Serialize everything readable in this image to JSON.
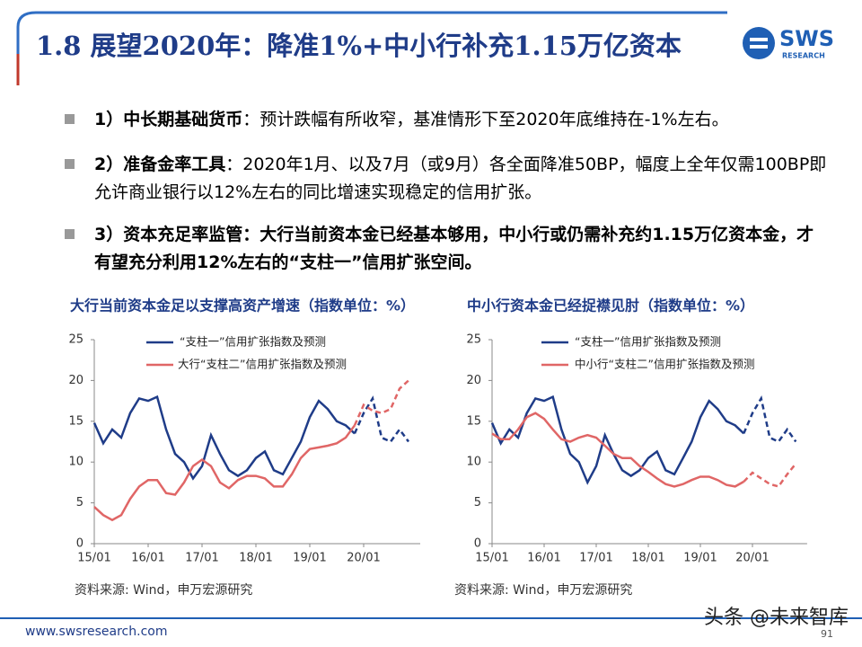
{
  "header": {
    "title": "1.8 展望2020年：降准1%+中小行补充1.15万亿资本",
    "logo": "SWS",
    "logo_sub": "RESEARCH"
  },
  "bullets": [
    {
      "lead": "1）中长期基础货币",
      "text": "：预计跌幅有所收窄，基准情形下至2020年底维持在-1%左右。",
      "bold": false
    },
    {
      "lead": "2）准备金率工具",
      "text": "：2020年1月、以及7月（或9月）各全面降准50BP，幅度上全年仅需100BP即允许商业银行以12%左右的同比增速实现稳定的信用扩张。",
      "bold": false
    },
    {
      "lead": "3）资本充足率监管",
      "text": "：大行当前资本金已经基本够用，中小行或仍需补充约1.15万亿资本金，才有望充分利用12%左右的“支柱一”信用扩张空间。",
      "bold": true
    }
  ],
  "chart_data": [
    {
      "type": "line",
      "title": "大行当前资本金足以支撑高资产增速（指数单位：%）",
      "categories": [
        "15/01",
        null,
        null,
        null,
        null,
        null,
        "16/01",
        null,
        null,
        null,
        null,
        null,
        "17/01",
        null,
        null,
        null,
        null,
        null,
        "18/01",
        null,
        null,
        null,
        null,
        null,
        "19/01",
        null,
        null,
        null,
        null,
        null,
        "20/01",
        null,
        null,
        null,
        null,
        null
      ],
      "ylim": [
        0,
        25
      ],
      "yticks": [
        0,
        5,
        10,
        15,
        20,
        25
      ],
      "series": [
        {
          "name": "“支柱一”信用扩张指数及预测",
          "color": "#1f3c88",
          "values": [
            14.8,
            12.3,
            14.0,
            13.0,
            16.0,
            17.8,
            17.5,
            18.0,
            14.0,
            11.0,
            10.0,
            8.0,
            9.5,
            13.3,
            11.0,
            9.0,
            8.3,
            9.0,
            10.5,
            11.3,
            9.0,
            8.5,
            10.5,
            12.5,
            15.5,
            17.5,
            16.5,
            15.0,
            14.5,
            13.5,
            null,
            null,
            null,
            null,
            null,
            null
          ]
        },
        {
          "color": "#1f3c88",
          "dashed": true,
          "values": [
            null,
            null,
            null,
            null,
            null,
            null,
            null,
            null,
            null,
            null,
            null,
            null,
            null,
            null,
            null,
            null,
            null,
            null,
            null,
            null,
            null,
            null,
            null,
            null,
            null,
            null,
            null,
            null,
            null,
            13.5,
            16.0,
            17.8,
            13.0,
            12.5,
            14.0,
            12.5
          ]
        },
        {
          "name": "大行“支柱二”信用扩张指数及预测",
          "color": "#e06666",
          "values": [
            4.5,
            3.5,
            2.9,
            3.5,
            5.5,
            7.0,
            7.8,
            7.8,
            6.2,
            6.0,
            7.5,
            9.5,
            10.3,
            9.5,
            7.5,
            6.8,
            7.8,
            8.3,
            8.3,
            8.0,
            7.0,
            7.0,
            8.5,
            10.5,
            11.6,
            11.8,
            12.0,
            12.3,
            13.0,
            14.5,
            null,
            null,
            null,
            null,
            null,
            null
          ]
        },
        {
          "color": "#e06666",
          "dashed": true,
          "values": [
            null,
            null,
            null,
            null,
            null,
            null,
            null,
            null,
            null,
            null,
            null,
            null,
            null,
            null,
            null,
            null,
            null,
            null,
            null,
            null,
            null,
            null,
            null,
            null,
            null,
            null,
            null,
            null,
            null,
            14.5,
            17.0,
            16.3,
            16.0,
            16.5,
            19.0,
            20.0
          ]
        }
      ],
      "source": "资料来源: Wind，申万宏源研究"
    },
    {
      "type": "line",
      "title": "中小行资本金已经捉襟见肘（指数单位：%）",
      "categories": [
        "15/01",
        null,
        null,
        null,
        null,
        null,
        "16/01",
        null,
        null,
        null,
        null,
        null,
        "17/01",
        null,
        null,
        null,
        null,
        null,
        "18/01",
        null,
        null,
        null,
        null,
        null,
        "19/01",
        null,
        null,
        null,
        null,
        null,
        "20/01",
        null,
        null,
        null,
        null,
        null
      ],
      "ylim": [
        0,
        25
      ],
      "yticks": [
        0,
        5,
        10,
        15,
        20,
        25
      ],
      "series": [
        {
          "name": "“支柱一”信用扩张指数及预测",
          "color": "#1f3c88",
          "values": [
            14.8,
            12.3,
            14.0,
            13.0,
            16.0,
            17.8,
            17.5,
            18.0,
            14.0,
            11.0,
            10.0,
            7.5,
            9.5,
            13.3,
            11.0,
            9.0,
            8.3,
            9.0,
            10.5,
            11.3,
            9.0,
            8.5,
            10.5,
            12.5,
            15.5,
            17.5,
            16.5,
            15.0,
            14.5,
            13.5,
            null,
            null,
            null,
            null,
            null,
            null
          ]
        },
        {
          "color": "#1f3c88",
          "dashed": true,
          "values": [
            null,
            null,
            null,
            null,
            null,
            null,
            null,
            null,
            null,
            null,
            null,
            null,
            null,
            null,
            null,
            null,
            null,
            null,
            null,
            null,
            null,
            null,
            null,
            null,
            null,
            null,
            null,
            null,
            null,
            13.5,
            16.0,
            17.8,
            13.0,
            12.5,
            14.0,
            12.5
          ]
        },
        {
          "name": "中小行“支柱二”信用扩张指数及预测",
          "color": "#e06666",
          "values": [
            13.5,
            12.8,
            12.8,
            14.0,
            15.5,
            16.0,
            15.3,
            14.0,
            12.8,
            12.5,
            13.0,
            13.3,
            13.0,
            12.0,
            11.0,
            10.5,
            10.5,
            9.5,
            8.8,
            8.0,
            7.3,
            7.0,
            7.3,
            7.8,
            8.2,
            8.2,
            7.8,
            7.2,
            7.0,
            7.6,
            null,
            null,
            null,
            null,
            null,
            null
          ]
        },
        {
          "color": "#e06666",
          "dashed": true,
          "values": [
            null,
            null,
            null,
            null,
            null,
            null,
            null,
            null,
            null,
            null,
            null,
            null,
            null,
            null,
            null,
            null,
            null,
            null,
            null,
            null,
            null,
            null,
            null,
            null,
            null,
            null,
            null,
            null,
            null,
            7.6,
            8.7,
            8.0,
            7.3,
            7.0,
            8.5,
            9.8
          ]
        }
      ],
      "source": "资料来源: Wind，申万宏源研究"
    }
  ],
  "footer": {
    "url": "www.swsresearch.com",
    "page": "91",
    "watermark": "头条 @未来智库"
  }
}
